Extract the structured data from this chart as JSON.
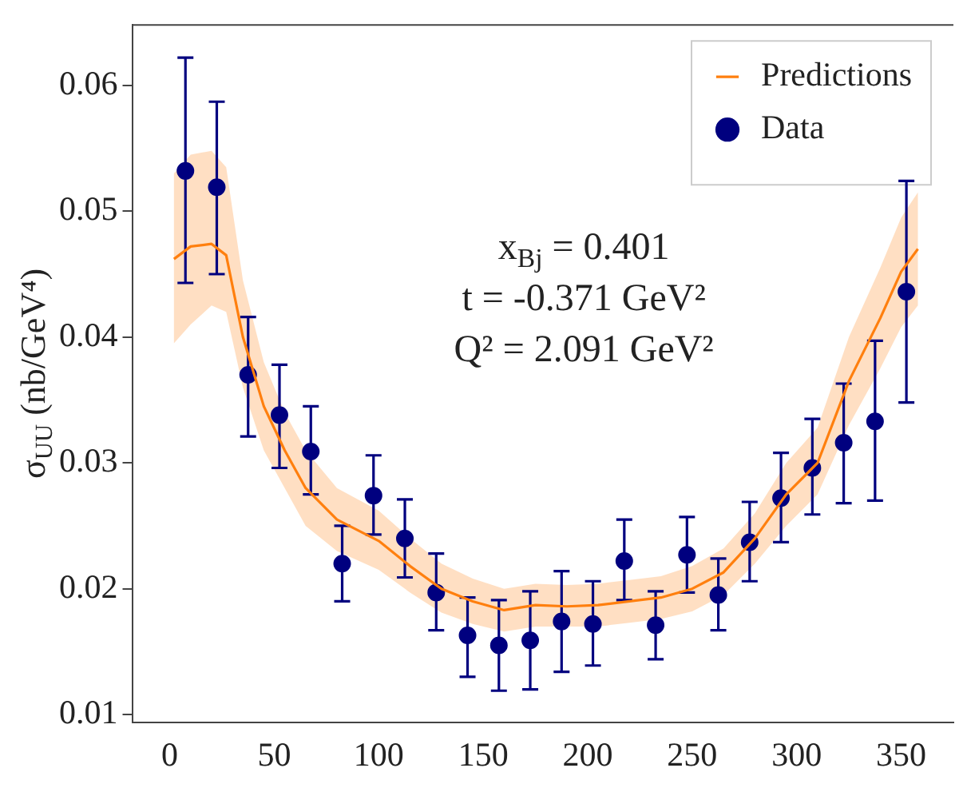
{
  "chart_data": {
    "type": "line",
    "ylabel": "σ$_{UU}$ (nb/GeV⁴)",
    "annotations": [
      "x$_{Bj}$ = 0.401",
      "t = -0.371 GeV²",
      "Q² = 2.091 GeV²"
    ],
    "xlim": [
      -18,
      375
    ],
    "xticks": [
      0,
      50,
      100,
      150,
      200,
      250,
      300,
      350
    ],
    "ylim": [
      0.0094,
      0.0648
    ],
    "yticks": [
      0.01,
      0.02,
      0.03,
      0.04,
      0.05,
      0.06
    ],
    "grid": false,
    "legend": "top right",
    "series": [
      {
        "name": "Predictions",
        "color": "#ff7f0e",
        "marker": "none",
        "x": [
          2,
          10,
          20,
          27,
          35,
          45,
          55,
          65,
          80,
          100,
          115,
          130,
          145,
          160,
          175,
          190,
          205,
          220,
          235,
          250,
          265,
          280,
          295,
          310,
          325,
          340,
          350,
          358
        ],
        "values": [
          0.0462,
          0.0472,
          0.0474,
          0.0465,
          0.04,
          0.0345,
          0.031,
          0.028,
          0.0255,
          0.0238,
          0.0218,
          0.02,
          0.019,
          0.0183,
          0.0187,
          0.0186,
          0.0187,
          0.019,
          0.0193,
          0.02,
          0.0213,
          0.024,
          0.0275,
          0.03,
          0.0365,
          0.0415,
          0.0452,
          0.047
        ],
        "lower": [
          0.0395,
          0.041,
          0.0425,
          0.042,
          0.036,
          0.031,
          0.028,
          0.025,
          0.023,
          0.0215,
          0.0197,
          0.0181,
          0.0172,
          0.0166,
          0.017,
          0.017,
          0.017,
          0.0173,
          0.0176,
          0.0182,
          0.0195,
          0.022,
          0.025,
          0.0275,
          0.033,
          0.0375,
          0.0408,
          0.0425
        ],
        "upper": [
          0.053,
          0.0545,
          0.0548,
          0.0535,
          0.0445,
          0.038,
          0.034,
          0.031,
          0.028,
          0.0262,
          0.024,
          0.022,
          0.0208,
          0.02,
          0.0204,
          0.0203,
          0.0204,
          0.0207,
          0.021,
          0.0218,
          0.0232,
          0.026,
          0.03,
          0.0328,
          0.04,
          0.0455,
          0.0495,
          0.0515
        ]
      },
      {
        "name": "Data",
        "type": "scatter",
        "color": "#00007f",
        "marker": "circle",
        "x": [
          7.5,
          22.5,
          37.5,
          52.5,
          67.5,
          82.5,
          97.5,
          112.5,
          127.5,
          142.5,
          157.5,
          172.5,
          187.5,
          202.5,
          217.5,
          232.5,
          247.5,
          262.5,
          277.5,
          292.5,
          307.5,
          322.5,
          337.5,
          352.5
        ],
        "values": [
          0.0532,
          0.0519,
          0.037,
          0.0338,
          0.0309,
          0.022,
          0.0274,
          0.024,
          0.0197,
          0.0163,
          0.0155,
          0.0159,
          0.0174,
          0.0172,
          0.0222,
          0.0171,
          0.0227,
          0.0195,
          0.0237,
          0.0272,
          0.0296,
          0.0316,
          0.0333,
          0.0436
        ],
        "errors": [
          [
            0.0443,
            0.0622
          ],
          [
            0.045,
            0.0587
          ],
          [
            0.0321,
            0.0416
          ],
          [
            0.0296,
            0.0378
          ],
          [
            0.0275,
            0.0345
          ],
          [
            0.019,
            0.025
          ],
          [
            0.0243,
            0.0306
          ],
          [
            0.0209,
            0.0271
          ],
          [
            0.0167,
            0.0228
          ],
          [
            0.013,
            0.0193
          ],
          [
            0.0119,
            0.0191
          ],
          [
            0.012,
            0.0198
          ],
          [
            0.0134,
            0.0214
          ],
          [
            0.0139,
            0.0206
          ],
          [
            0.0191,
            0.0255
          ],
          [
            0.0144,
            0.0198
          ],
          [
            0.0197,
            0.0257
          ],
          [
            0.0167,
            0.0224
          ],
          [
            0.0206,
            0.0269
          ],
          [
            0.0237,
            0.0308
          ],
          [
            0.0259,
            0.0335
          ],
          [
            0.0268,
            0.0363
          ],
          [
            0.027,
            0.0397
          ],
          [
            0.0348,
            0.0524
          ]
        ]
      }
    ]
  }
}
